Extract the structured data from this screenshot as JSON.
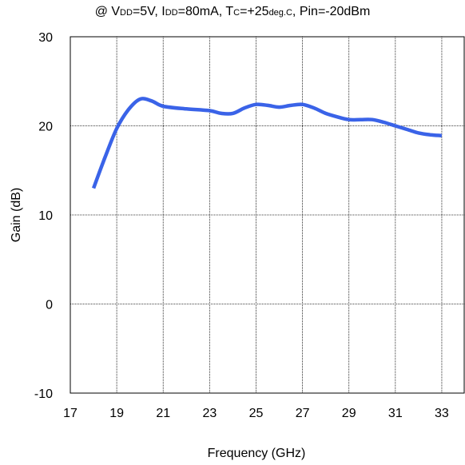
{
  "title_parts": {
    "p1": "@ V",
    "p2": "DD",
    "p3": "=5V, I",
    "p4": "DD",
    "p5": "=80mA, T",
    "p6": "C",
    "p7": "=+25",
    "p8": "deg.C",
    "p9": ", Pin=-20dBm"
  },
  "chart_data": {
    "type": "line",
    "title": "@ VDD=5V, IDD=80mA, TC=+25deg.C, Pin=-20dBm",
    "xlabel": "Frequency (GHz)",
    "ylabel": "Gain (dB)",
    "xlim": [
      17,
      34
    ],
    "ylim": [
      -10,
      30
    ],
    "xticks": [
      17,
      19,
      21,
      23,
      25,
      27,
      29,
      31,
      33
    ],
    "yticks": [
      -10,
      0,
      10,
      20,
      30
    ],
    "grid": true,
    "series": [
      {
        "color": "#3a63e8",
        "x": [
          18,
          18.5,
          19,
          19.5,
          20,
          20.5,
          21,
          22,
          23,
          23.5,
          24,
          24.5,
          25,
          25.5,
          26,
          26.5,
          27,
          27.5,
          28,
          28.5,
          29,
          29.5,
          30,
          30.5,
          31,
          31.5,
          32,
          32.5,
          33
        ],
        "y": [
          13,
          16.5,
          19.7,
          21.8,
          23,
          22.8,
          22.2,
          21.9,
          21.7,
          21.4,
          21.4,
          22,
          22.4,
          22.3,
          22.1,
          22.3,
          22.4,
          22,
          21.4,
          21,
          20.7,
          20.7,
          20.7,
          20.4,
          20,
          19.6,
          19.2,
          19,
          18.9
        ]
      }
    ]
  }
}
